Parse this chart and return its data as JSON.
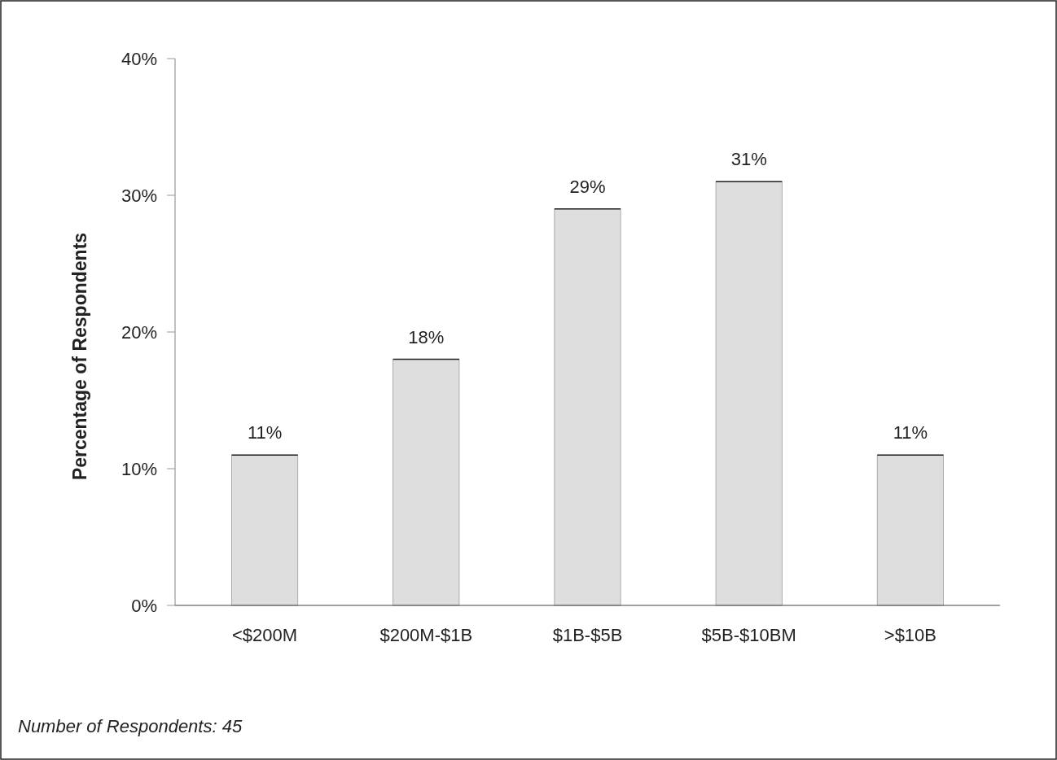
{
  "chart_data": {
    "type": "bar",
    "ylabel": "Percentage of Respondents",
    "categories": [
      "<$200M",
      "$200M-$1B",
      "$1B-$5B",
      "$5B-$10BM",
      ">$10B"
    ],
    "values": [
      11,
      18,
      29,
      31,
      11
    ],
    "color": "#dedede",
    "value_labels": [
      "11%",
      "18%",
      "29%",
      "31%",
      "11%"
    ],
    "ylim": [
      0,
      40
    ],
    "yticks": [
      {
        "value": 0,
        "label": "0%"
      },
      {
        "value": 10,
        "label": "10%"
      },
      {
        "value": 20,
        "label": "20%"
      },
      {
        "value": 30,
        "label": "30%"
      },
      {
        "value": 40,
        "label": "40%"
      }
    ],
    "grid": false,
    "annotations": [
      "Number of Respondents: 45"
    ]
  }
}
